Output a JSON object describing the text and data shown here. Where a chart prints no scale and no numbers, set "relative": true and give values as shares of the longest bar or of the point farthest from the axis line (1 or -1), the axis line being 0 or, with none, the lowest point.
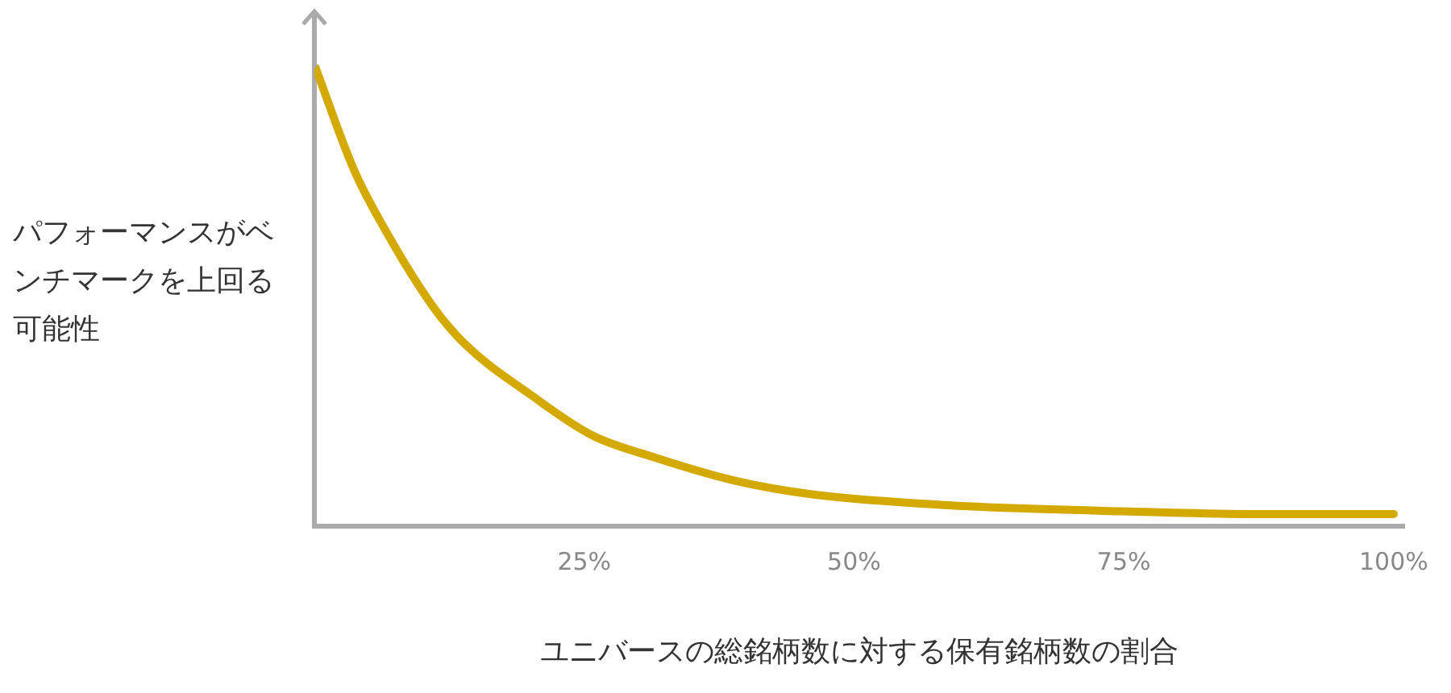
{
  "chart_data": {
    "type": "line",
    "relative": true,
    "xlabel": "ユニバースの総銘柄数に対する保有銘柄数の割合",
    "ylabel": "パフォーマンスがベンチマークを上回る可能性",
    "xlim": [
      0,
      101
    ],
    "xticks": [
      {
        "value": 25,
        "label": "25%"
      },
      {
        "value": 50,
        "label": "50%"
      },
      {
        "value": 75,
        "label": "75%"
      },
      {
        "value": 100,
        "label": "100%"
      }
    ],
    "grid": false,
    "legend": false,
    "marker": "none",
    "line_style": "solid",
    "series": [
      {
        "color": "#d4a900",
        "x": [
          0,
          3.7,
          6.6,
          11,
          14,
          20,
          25.7,
          31.6,
          39,
          46,
          58,
          73,
          87.5,
          100
        ],
        "values": [
          1,
          0.77,
          0.64,
          0.475,
          0.393,
          0.285,
          0.197,
          0.148,
          0.098,
          0.069,
          0.046,
          0.033,
          0.026,
          0.026
        ]
      }
    ]
  }
}
